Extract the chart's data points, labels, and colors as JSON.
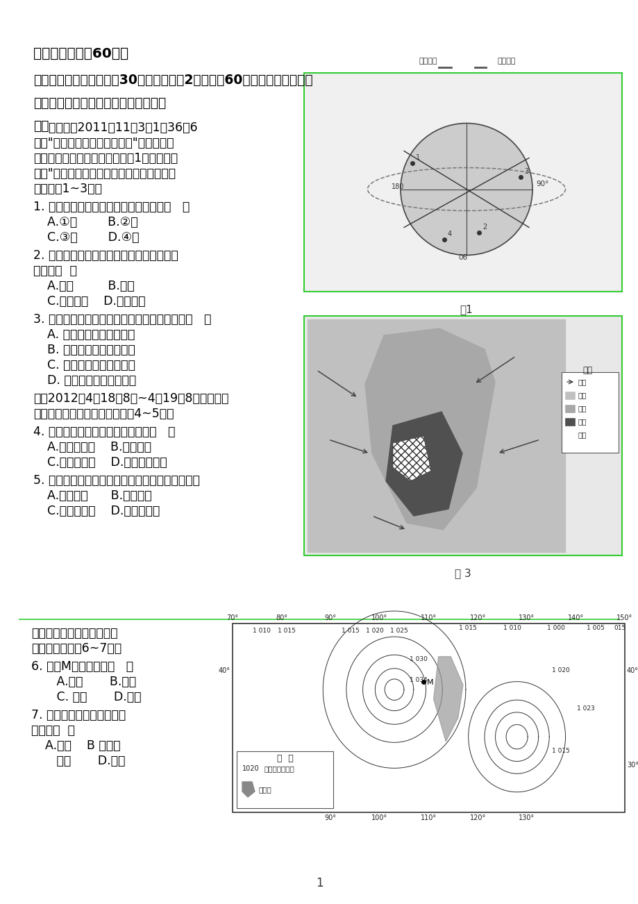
{
  "bg_color": "#ffffff",
  "page_width": 9.2,
  "page_height": 13.02,
  "dpi": 100,
  "fig1_label": "图1",
  "fig3_label": "图 3",
  "green_border_color": "#33cc33",
  "text_color": "#000000",
  "header1": "一、选择题（共60分）",
  "header2": "（一）选择题：本大题共30小题，每小题2分，共计60分。在每小题给出的",
  "header3": "四个选项中，只有一项是符合题目要求",
  "header4": "的。",
  "para1_lines": [
    "    北京时间2011年11月3日1时36分6",
    "秒，\"天宫一号冶目标飞行器与\"神舟八号冶",
    "飞船成功实现首次交会对接。图1是神舟八号",
    "冶与\"天宫一号冶首次对接空间位置示意图。",
    "读图回答1~3题。"
  ],
  "q1": "1. 首次成功对接时，地球表面的晨线是（   ）",
  "q1a": "A.①线        B.②线",
  "q1b": "C.③线        D.④线",
  "q2a_text": "2. 最可能干扰航天器与地面指挥系统通信联",
  "q2b_text": "系的是（  ）",
  "q2a": "A.云雾         B.流星",
  "q2b": "C.太阳活动    D.太阳辐射",
  "q3": "3. 成功实现首次交会对接这一天，太阳直射点（   ）",
  "q3a": "A. 在北半球，并向北移动",
  "q3b": "B. 在北半球，并向南移动",
  "q3c": "C. 在南半球，并向南移动",
  "q3d": "D. 在南半球，并向北移动",
  "para2a": "图是2012年4月18日8时~4月19日8时我国部分",
  "para2b": "地区降水分布示意图。读图回答4~5题。",
  "q4": "4. 形成图示地区降水的主要原因是（   ）",
  "q4a": "A.高压脊控制    B.锋面活动",
  "q4b": "C.反气旋过境    D.热带气旋影响",
  "q5": "5. 若图示降水持续多日，最易发生洪涝的地区是（",
  "q5a": "A.江汉平原      B.四川盆地",
  "q5b": "C.珠江三角洲    D.长江三角洲",
  "para3a": "上图是某区域某时地面天气",
  "para3b": "简图。读图回答6~7题。",
  "q6": "6. 图中M地的风向是（   ）",
  "q6a": "   A.东北       B.东南",
  "q6b": "   C. 西北       D.西南",
  "q7a_text": "7. 产生图示区域降水的天气",
  "q7b_text": "系统是（  ）",
  "q7a": "A.气旋    B 反气旋",
  "q7b": "   暖锋       D.冷锋",
  "fig_tiangong": "天宫一号",
  "fig_shenzhou": "神舟八号",
  "leg_title": "图例",
  "leg_qiliu": "气流",
  "leg_xiaoyu": "小雨",
  "leg_zhongyu": "中雨",
  "leg_dayu": "大雨",
  "leg_baoyu": "暴雨",
  "wm_leg_title": "图  例",
  "wm_leg_isobar": "等压线（百帕）",
  "wm_leg_rain": "降水区",
  "page_num": "1"
}
